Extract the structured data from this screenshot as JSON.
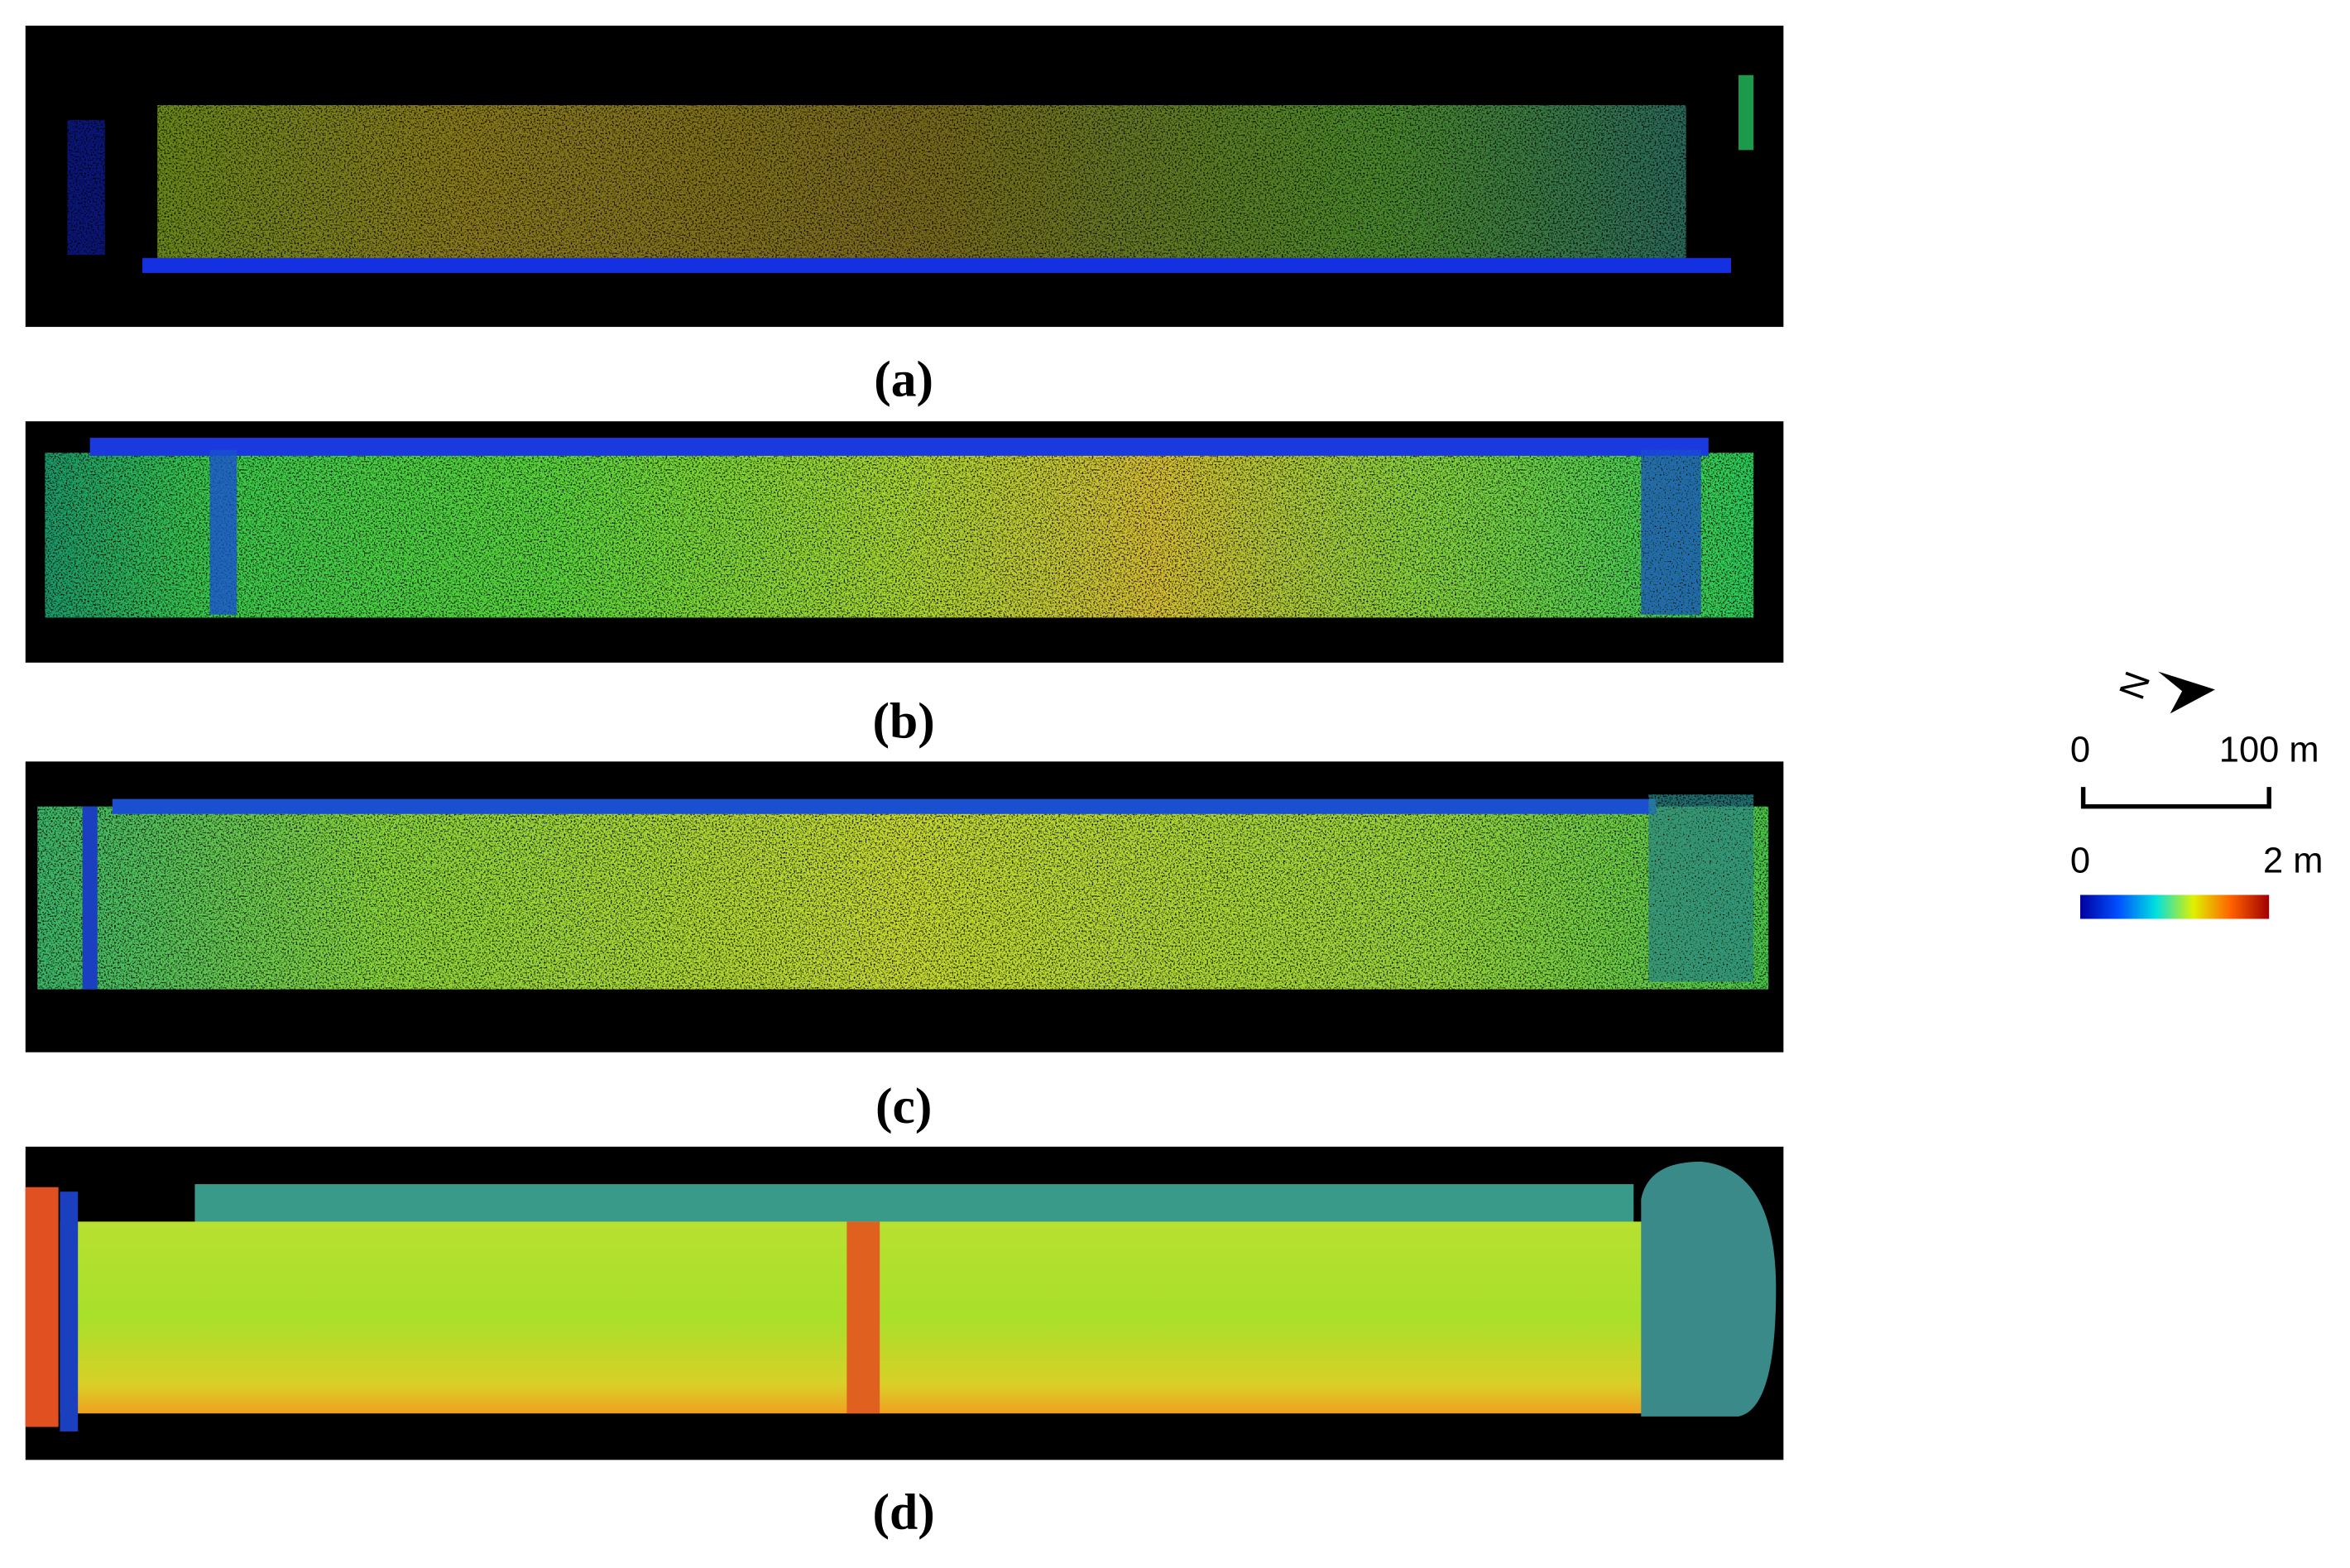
{
  "panels": [
    {
      "label": "(a)"
    },
    {
      "label": "(b)"
    },
    {
      "label": "(c)"
    },
    {
      "label": "(d)"
    }
  ],
  "legend": {
    "north": "N",
    "scale_bar": {
      "start": "0",
      "end": "100 m"
    },
    "color_bar": {
      "min": "0",
      "max": "2 m"
    }
  }
}
